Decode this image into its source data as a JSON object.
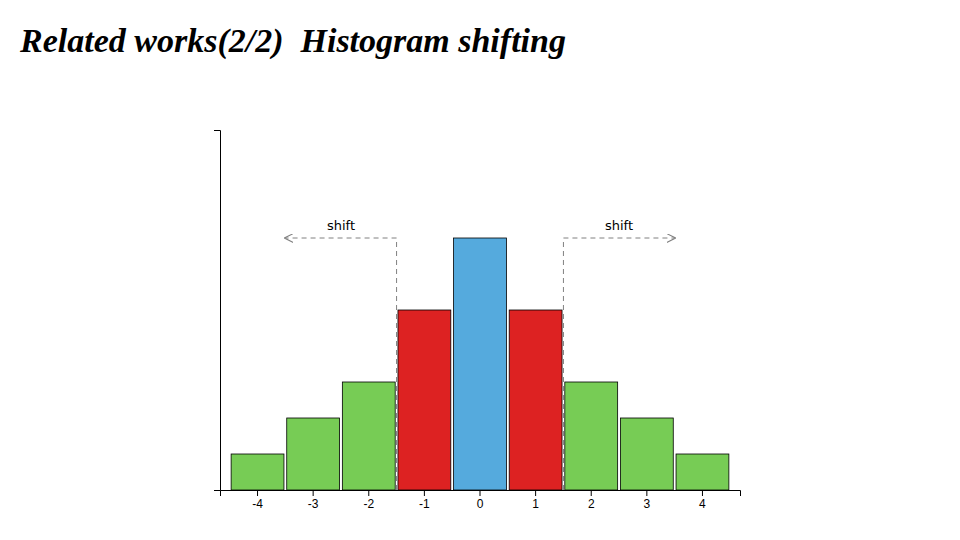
{
  "chart_data": {
    "type": "bar",
    "title": "Related works(2/2)  Histogram shifting",
    "categories": [
      "-4",
      "-3",
      "-2",
      "-1",
      "0",
      "1",
      "2",
      "3",
      "4"
    ],
    "values": [
      1,
      2,
      3,
      5,
      7,
      5,
      3,
      2,
      1
    ],
    "colors": [
      "#77cc55",
      "#77cc55",
      "#77cc55",
      "#dd2222",
      "#55aadd",
      "#dd2222",
      "#77cc55",
      "#77cc55",
      "#77cc55"
    ],
    "ylim": [
      0,
      10
    ],
    "tick_labels": "x",
    "annotations": [
      "shift",
      "shift"
    ]
  }
}
